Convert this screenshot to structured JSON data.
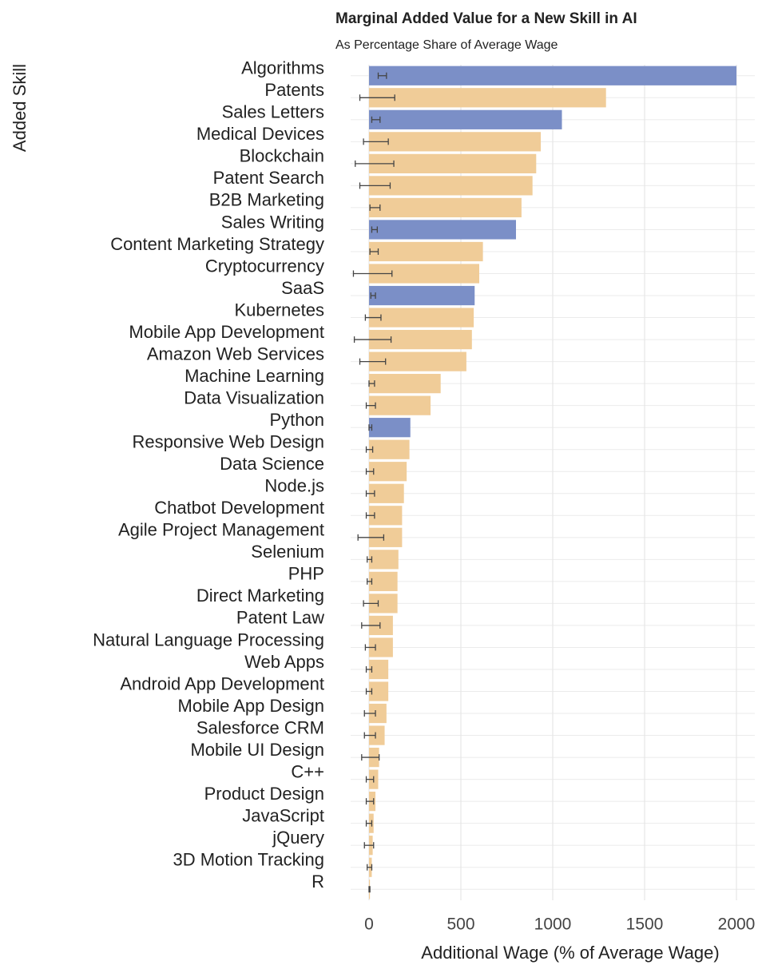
{
  "chart_data": {
    "type": "barh",
    "title": "Marginal Added Value for a New Skill in AI",
    "subtitle": "As Percentage Share of Average Wage",
    "xlabel": "Additional Wage (% of Average Wage)",
    "ylabel": "Added Skill",
    "categories": [
      "Algorithms",
      "Patents",
      "Sales Letters",
      "Medical Devices",
      "Blockchain",
      "Patent Search",
      "B2B Marketing",
      "Sales Writing",
      "Content Marketing Strategy",
      "Cryptocurrency",
      "SaaS",
      "Kubernetes",
      "Mobile App Development",
      "Amazon Web Services",
      "Machine Learning",
      "Data Visualization",
      "Python",
      "Responsive Web Design",
      "Data Science",
      "Node.js",
      "Chatbot Development",
      "Agile Project Management",
      "Selenium",
      "PHP",
      "Direct Marketing",
      "Patent Law",
      "Natural Language Processing",
      "Web Apps",
      "Android App Development",
      "Mobile App Design",
      "Salesforce CRM",
      "Mobile UI Design",
      "C++",
      "Product Design",
      "JavaScript",
      "jQuery",
      "3D Motion Tracking",
      "R"
    ],
    "values": [
      2000,
      1290,
      1050,
      935,
      910,
      890,
      830,
      800,
      620,
      600,
      575,
      570,
      560,
      530,
      390,
      335,
      225,
      220,
      205,
      190,
      180,
      180,
      160,
      155,
      155,
      130,
      130,
      105,
      105,
      95,
      85,
      55,
      50,
      35,
      25,
      20,
      15,
      5
    ],
    "error_low": [
      50,
      -50,
      15,
      -30,
      -75,
      -50,
      5,
      15,
      5,
      -85,
      10,
      -20,
      -80,
      -50,
      0,
      -15,
      0,
      -15,
      -15,
      -15,
      -15,
      -60,
      -10,
      -10,
      -30,
      -40,
      -20,
      -15,
      -15,
      -25,
      -25,
      -40,
      -15,
      -15,
      -15,
      -25,
      -10,
      0
    ],
    "error_high": [
      95,
      140,
      60,
      105,
      135,
      115,
      60,
      45,
      50,
      125,
      35,
      65,
      120,
      90,
      30,
      35,
      15,
      20,
      25,
      30,
      30,
      80,
      15,
      15,
      50,
      60,
      35,
      15,
      15,
      35,
      35,
      55,
      25,
      25,
      15,
      25,
      15,
      5
    ],
    "colors": [
      "#7b8fc7",
      "#f0cc98",
      "#7b8fc7",
      "#f0cc98",
      "#f0cc98",
      "#f0cc98",
      "#f0cc98",
      "#7b8fc7",
      "#f0cc98",
      "#f0cc98",
      "#7b8fc7",
      "#f0cc98",
      "#f0cc98",
      "#f0cc98",
      "#f0cc98",
      "#f0cc98",
      "#7b8fc7",
      "#f0cc98",
      "#f0cc98",
      "#f0cc98",
      "#f0cc98",
      "#f0cc98",
      "#f0cc98",
      "#f0cc98",
      "#f0cc98",
      "#f0cc98",
      "#f0cc98",
      "#f0cc98",
      "#f0cc98",
      "#f0cc98",
      "#f0cc98",
      "#f0cc98",
      "#f0cc98",
      "#f0cc98",
      "#f0cc98",
      "#f0cc98",
      "#f0cc98",
      "#f0cc98"
    ],
    "xlim": [
      -100,
      2100
    ],
    "xticks": [
      0,
      500,
      1000,
      1500,
      2000
    ],
    "grid": true
  }
}
